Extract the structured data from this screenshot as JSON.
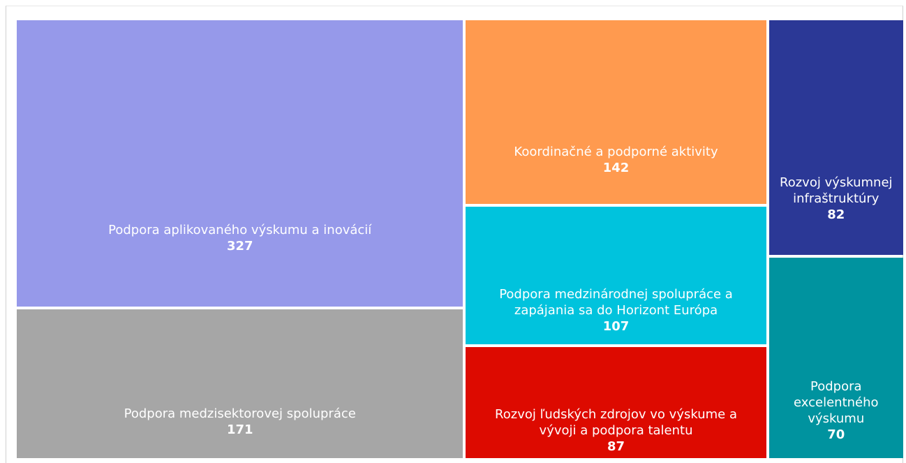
{
  "chart_data": {
    "type": "treemap",
    "categories": [
      "Podpora aplikovaného výskumu a inovácií",
      "Podpora medzisektorovej spolupráce",
      "Koordinačné a podporné aktivity",
      "Podpora medzinárodnej spolupráce a zapájania sa do Horizont Európa",
      "Rozvoj ľudských zdrojov vo výskume a vývoji a podpora talentu",
      "Rozvoj výskumnej infraštruktúry",
      "Podpora excelentného výskumu"
    ],
    "values": [
      327,
      171,
      142,
      107,
      87,
      82,
      70
    ],
    "colors": [
      "#9699ea",
      "#a6a6a6",
      "#ff9a4f",
      "#00c3dd",
      "#dd0a00",
      "#2b3896",
      "#00939f"
    ]
  }
}
